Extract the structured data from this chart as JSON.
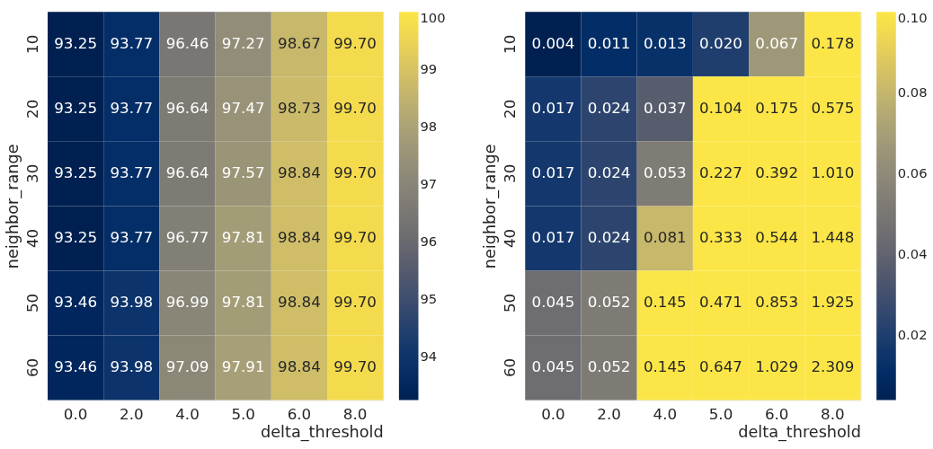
{
  "chart_data": [
    {
      "type": "heatmap",
      "xlabel": "delta_threshold",
      "ylabel": "neighbor_range",
      "categories": [
        "0.0",
        "2.0",
        "4.0",
        "5.0",
        "6.0",
        "8.0"
      ],
      "y_categories": [
        "10",
        "20",
        "30",
        "40",
        "50",
        "60"
      ],
      "cells": [
        [
          93.25,
          93.77,
          96.46,
          97.27,
          98.67,
          99.7
        ],
        [
          93.25,
          93.77,
          96.64,
          97.47,
          98.73,
          99.7
        ],
        [
          93.25,
          93.77,
          96.64,
          97.57,
          98.84,
          99.7
        ],
        [
          93.25,
          93.77,
          96.77,
          97.81,
          98.84,
          99.7
        ],
        [
          93.46,
          93.98,
          96.99,
          97.81,
          98.84,
          99.7
        ],
        [
          93.46,
          93.98,
          97.09,
          97.91,
          98.84,
          99.7
        ]
      ],
      "cell_labels": [
        [
          "93.25",
          "93.77",
          "96.46",
          "97.27",
          "98.67",
          "99.70"
        ],
        [
          "93.25",
          "93.77",
          "96.64",
          "97.47",
          "98.73",
          "99.70"
        ],
        [
          "93.25",
          "93.77",
          "96.64",
          "97.57",
          "98.84",
          "99.70"
        ],
        [
          "93.25",
          "93.77",
          "96.77",
          "97.81",
          "98.84",
          "99.70"
        ],
        [
          "93.46",
          "93.98",
          "96.99",
          "97.81",
          "98.84",
          "99.70"
        ],
        [
          "93.46",
          "93.98",
          "97.09",
          "97.91",
          "98.84",
          "99.70"
        ]
      ],
      "clim": [
        93.25,
        100
      ],
      "cticks": [
        94,
        95,
        96,
        97,
        98,
        99,
        100
      ]
    },
    {
      "type": "heatmap",
      "xlabel": "delta_threshold",
      "ylabel": "neighbor_range",
      "categories": [
        "0.0",
        "2.0",
        "4.0",
        "5.0",
        "6.0",
        "8.0"
      ],
      "y_categories": [
        "10",
        "20",
        "30",
        "40",
        "50",
        "60"
      ],
      "cells": [
        [
          0.004,
          0.011,
          0.013,
          0.02,
          0.067,
          0.178
        ],
        [
          0.017,
          0.024,
          0.037,
          0.104,
          0.175,
          0.575
        ],
        [
          0.017,
          0.024,
          0.053,
          0.227,
          0.392,
          1.01
        ],
        [
          0.017,
          0.024,
          0.081,
          0.333,
          0.544,
          1.448
        ],
        [
          0.045,
          0.052,
          0.145,
          0.471,
          0.853,
          1.925
        ],
        [
          0.045,
          0.052,
          0.145,
          0.647,
          1.029,
          2.309
        ]
      ],
      "cell_labels": [
        [
          "0.004",
          "0.011",
          "0.013",
          "0.020",
          "0.067",
          "0.178"
        ],
        [
          "0.017",
          "0.024",
          "0.037",
          "0.104",
          "0.175",
          "0.575"
        ],
        [
          "0.017",
          "0.024",
          "0.053",
          "0.227",
          "0.392",
          "1.010"
        ],
        [
          "0.017",
          "0.024",
          "0.081",
          "0.333",
          "0.544",
          "1.448"
        ],
        [
          "0.045",
          "0.052",
          "0.145",
          "0.471",
          "0.853",
          "1.925"
        ],
        [
          "0.045",
          "0.052",
          "0.145",
          "0.647",
          "1.029",
          "2.309"
        ]
      ],
      "clim": [
        0.004,
        0.1
      ],
      "cticks": [
        0.02,
        0.04,
        0.06,
        0.08,
        {
          "value": 0.1,
          "label": "0.10"
        }
      ]
    }
  ]
}
